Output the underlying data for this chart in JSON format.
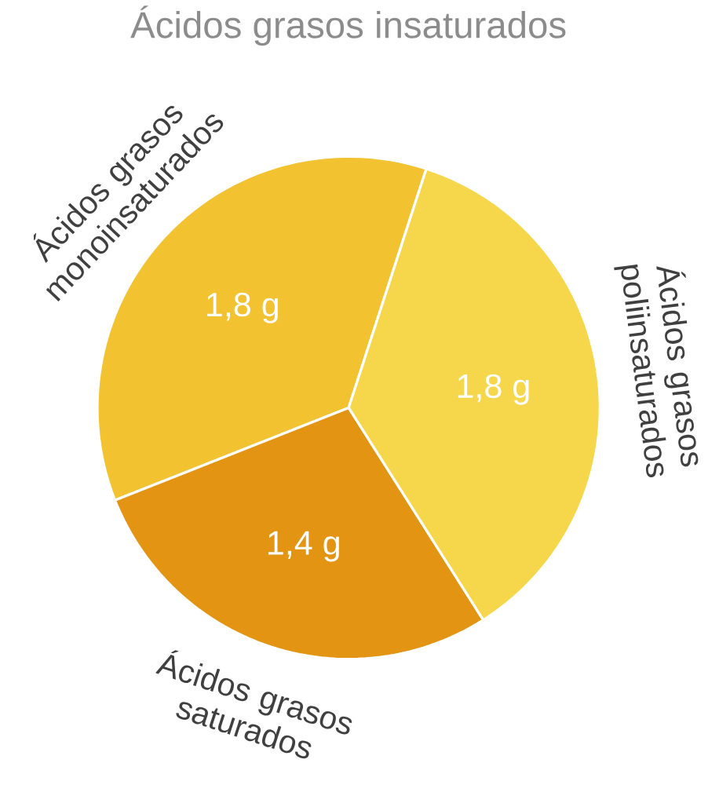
{
  "chart_data": {
    "type": "pie",
    "categories": [
      "Ácidos grasos monoinsaturados",
      "Ácidos grasos saturados",
      "Ácidos grasos poliinsaturados"
    ],
    "values": [
      1.8,
      1.4,
      1.8
    ],
    "value_labels": [
      "1,8 g",
      "1,4 g",
      "1,8 g"
    ],
    "colors": [
      "#f2c230",
      "#e39412",
      "#f6d64a"
    ],
    "annotations": [
      "Ácidos grasos insaturados"
    ]
  }
}
